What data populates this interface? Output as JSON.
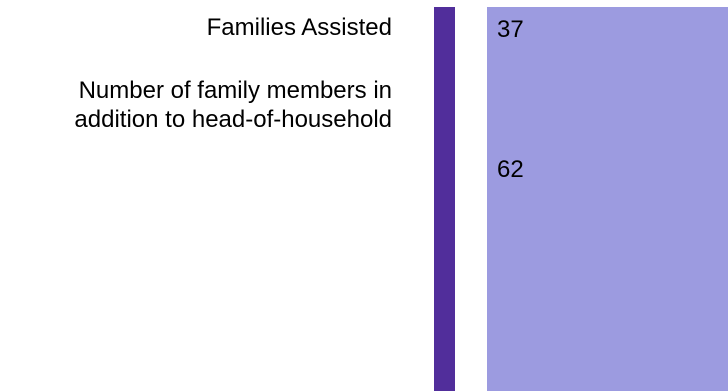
{
  "rows": [
    {
      "label": "Families Assisted",
      "value": "37"
    },
    {
      "label": "Number of family members in addition to head-of-household",
      "value": "62"
    }
  ],
  "colors": {
    "accent_bar": "#512e9b",
    "value_panel": "#9c9be0",
    "text": "#000000",
    "background": "#ffffff"
  }
}
